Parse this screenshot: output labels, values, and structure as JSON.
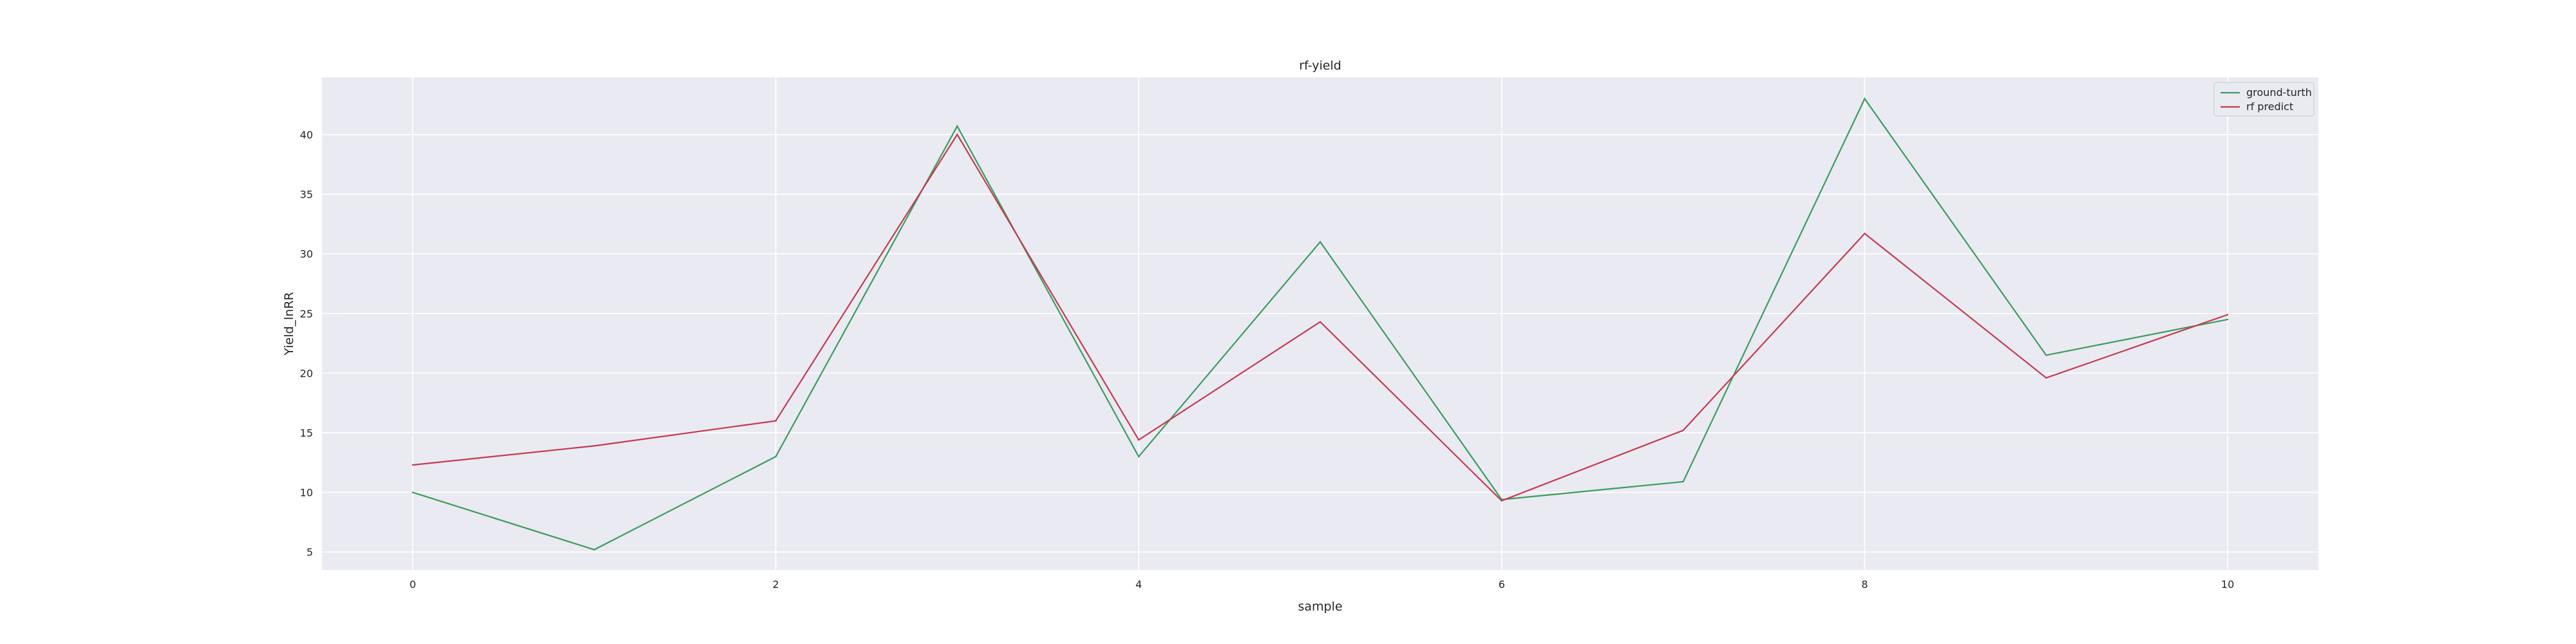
{
  "chart_data": {
    "type": "line",
    "title": "rf-yield",
    "xlabel": "sample",
    "ylabel": "Yield_lnRR",
    "x": [
      0,
      1,
      2,
      3,
      4,
      5,
      6,
      7,
      8,
      9,
      10
    ],
    "xticks": [
      0,
      2,
      4,
      6,
      8,
      10
    ],
    "yticks": [
      5,
      10,
      15,
      20,
      25,
      30,
      35,
      40
    ],
    "xlim": [
      -0.5,
      10.5
    ],
    "ylim": [
      3.5,
      44.8
    ],
    "grid": true,
    "legend_position": "top-right",
    "background_color": "#eaeaf2",
    "grid_color": "#ffffff",
    "series": [
      {
        "name": "ground-turth",
        "color": "#3b9c5c",
        "values": [
          10.0,
          5.2,
          13.0,
          40.7,
          13.0,
          31.0,
          9.4,
          10.9,
          43.0,
          21.5,
          24.5
        ]
      },
      {
        "name": "rf predict",
        "color": "#c43b4e",
        "values": [
          12.3,
          13.9,
          16.0,
          40.0,
          14.4,
          24.3,
          9.3,
          15.2,
          31.7,
          19.6,
          24.9
        ]
      }
    ]
  }
}
